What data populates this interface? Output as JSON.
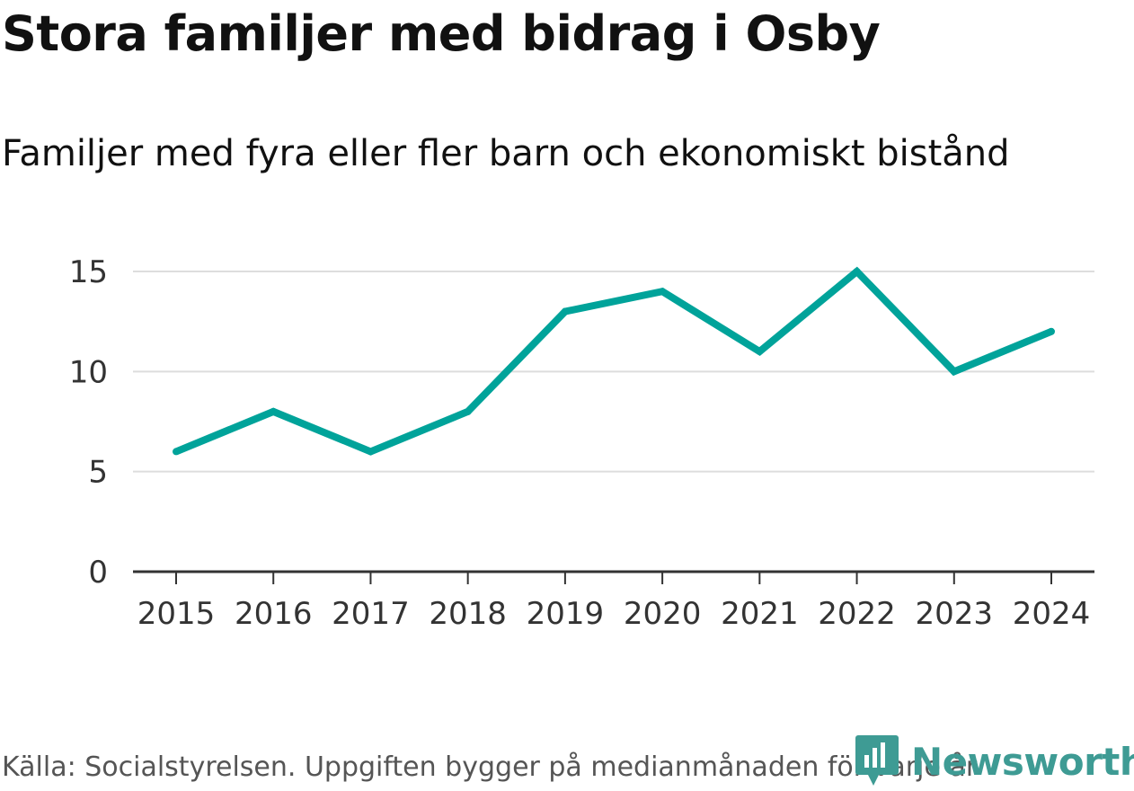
{
  "chart_data": {
    "type": "line",
    "title": "Stora familjer med bidrag i Osby",
    "subtitle": "Familjer med fyra eller fler barn och ekonomiskt bistånd",
    "categories": [
      "2015",
      "2016",
      "2017",
      "2018",
      "2019",
      "2020",
      "2021",
      "2022",
      "2023",
      "2024"
    ],
    "series": [
      {
        "name": "Familjer med fyra eller fler barn och ekonomiskt bistånd",
        "values": [
          6,
          8,
          6,
          8,
          13,
          14,
          11,
          15,
          10,
          12
        ]
      }
    ],
    "xlabel": "",
    "ylabel": "",
    "ylim": [
      0,
      15
    ],
    "yticks": [
      "0",
      "5",
      "10",
      "15"
    ],
    "grid": true,
    "line_color": "#00a39a",
    "source": "Källa: Socialstyrelsen. Uppgiften bygger på medianmånaden för varje år"
  },
  "brand": {
    "name": "Newsworthy",
    "logo_icon": "newsworthy-logo-icon",
    "color": "#3e9b94"
  }
}
